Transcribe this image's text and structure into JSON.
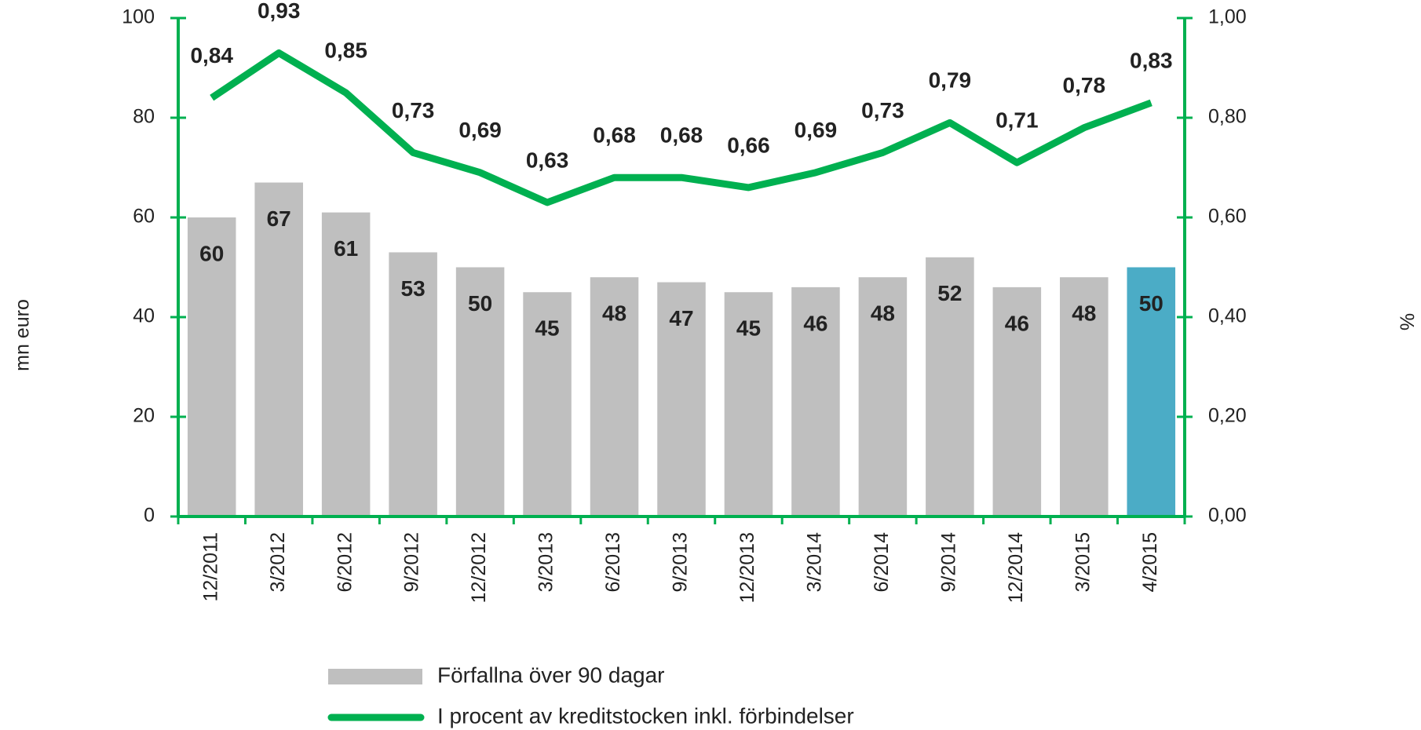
{
  "chart_data": {
    "type": "bar",
    "categories": [
      "12/2011",
      "3/2012",
      "6/2012",
      "9/2012",
      "12/2012",
      "3/2013",
      "6/2013",
      "9/2013",
      "12/2013",
      "3/2014",
      "6/2014",
      "9/2014",
      "12/2014",
      "3/2015",
      "4/2015"
    ],
    "series": [
      {
        "name": "Förfallna över 90 dagar",
        "type": "bar",
        "color": "#bfbfbf",
        "colors": [
          "#bfbfbf",
          "#bfbfbf",
          "#bfbfbf",
          "#bfbfbf",
          "#bfbfbf",
          "#bfbfbf",
          "#bfbfbf",
          "#bfbfbf",
          "#bfbfbf",
          "#bfbfbf",
          "#bfbfbf",
          "#bfbfbf",
          "#bfbfbf",
          "#bfbfbf",
          "#4bacc6"
        ],
        "values": [
          60,
          67,
          61,
          53,
          50,
          45,
          48,
          47,
          45,
          46,
          48,
          52,
          46,
          48,
          50
        ]
      },
      {
        "name": "I procent av kreditstocken inkl. förbindelser",
        "type": "line",
        "axis": "y2",
        "color": "#00b050",
        "values": [
          0.84,
          0.93,
          0.85,
          0.73,
          0.69,
          0.63,
          0.68,
          0.68,
          0.66,
          0.69,
          0.73,
          0.79,
          0.71,
          0.78,
          0.83
        ],
        "value_labels": [
          "0,84",
          "0,93",
          "0,85",
          "0,73",
          "0,69",
          "0,63",
          "0,68",
          "0,68",
          "0,66",
          "0,69",
          "0,73",
          "0,79",
          "0,71",
          "0,78",
          "0,83"
        ]
      }
    ],
    "y_label": "mn euro",
    "y2_label": "%",
    "ylim": [
      0,
      100
    ],
    "yticks": [
      0,
      20,
      40,
      60,
      80,
      100
    ],
    "y2lim": [
      0,
      1
    ],
    "y2ticks": [
      {
        "value": 0,
        "label": "0,00"
      },
      {
        "value": 0.2,
        "label": "0,20"
      },
      {
        "value": 0.4,
        "label": "0,40"
      },
      {
        "value": 0.6,
        "label": "0,60"
      },
      {
        "value": 0.8,
        "label": "0,80"
      },
      {
        "value": 1,
        "label": "1,00"
      }
    ],
    "axis_color": "#00b050",
    "legend": "bottom"
  }
}
